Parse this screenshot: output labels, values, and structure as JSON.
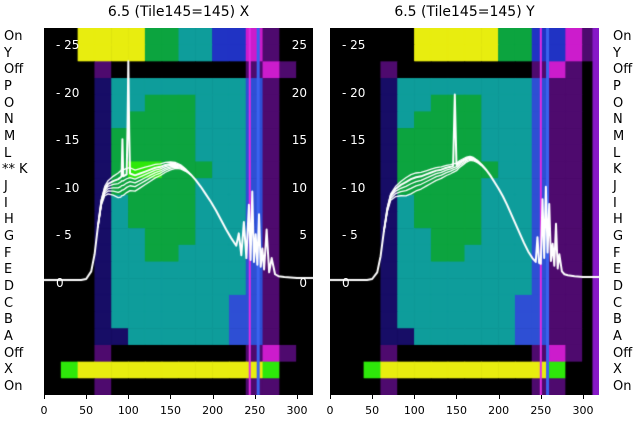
{
  "side_labels": {
    "left": [
      "On",
      "Y",
      "Off",
      "P",
      "O",
      "N",
      "M",
      "L",
      "K",
      "J",
      "I",
      "H",
      "G",
      "F",
      "E",
      "D",
      "C",
      "B",
      "A",
      "Off",
      "X",
      "On"
    ],
    "right": [
      "On",
      "Y",
      "Off",
      "P",
      "O",
      "N",
      "M",
      "L",
      "K",
      "J",
      "I",
      "H",
      "G",
      "F",
      "E",
      "D",
      "C",
      "B",
      "A",
      "Off",
      "X",
      "On"
    ],
    "marker_text": "**",
    "marker_row": 8
  },
  "palette": {
    "k": "#000000",
    "p": "#4e0a6e",
    "m": "#cc1ccc",
    "v": "#7a0fb4",
    "n": "#170d66",
    "d": "#2033c4",
    "b": "#2e4fd4",
    "c": "#0e9d9b",
    "g": "#0ca43f",
    "e": "#2ee80a",
    "y": "#e8ed0f"
  },
  "chart_data": [
    {
      "type": "heatmap",
      "title": "6.5 (Tile145=145) X",
      "xlim": [
        0,
        319
      ],
      "ylim": [
        -11.8,
        26.8
      ],
      "x_tick_values": [
        0,
        50,
        100,
        150,
        200,
        250,
        300
      ],
      "x_tick_labels": [
        "0",
        "50",
        "100",
        "150",
        "200",
        "250",
        "300"
      ],
      "y_ticks_left": [
        {
          "v": 25,
          "label": "- 25"
        },
        {
          "v": 20,
          "label": "- 20"
        },
        {
          "v": 15,
          "label": "- 15"
        },
        {
          "v": 10,
          "label": "- 10"
        },
        {
          "v": 5,
          "label": "- 5"
        },
        {
          "v": 0,
          "label": "0"
        }
      ],
      "y_ticks_right": [
        {
          "v": 25,
          "label": "25"
        },
        {
          "v": 20,
          "label": "20"
        },
        {
          "v": 15,
          "label": "15"
        },
        {
          "v": 10,
          "label": "10"
        },
        {
          "v": 5,
          "label": "5"
        },
        {
          "v": 0,
          "label": "0"
        }
      ],
      "rows": [
        "kkyyyyggccddmpkk",
        "kkyyyyggccddmpkk",
        "kkkpkkkkkkkkpmpk",
        "kkknccccccccbpkk",
        "kkknccgggcccbpkk",
        "kkkncggggcccbpkk",
        "kkkngggggcccbpkk",
        "kkkngggggcccbpkk",
        "kkkngeegggccbpkk",
        "kkkngggggcccbpkk",
        "kkkncggggcccbpkk",
        "kkkncggggcccbpkk",
        "kkknccgggcccbpkk",
        "kkknccggccccbpkk",
        "kkknccccccccbpkk",
        "kkknccccccccbpkk",
        "kkkncccccccbbpkk",
        "kkkncccccccbbpkk",
        "kkknnccccccbbpkk",
        "kkkpkkkkkkkkpmpk",
        "keyyyyyyyyyyyekk",
        "kkkpkkkkkkkkppkk"
      ],
      "vlines": [
        {
          "x": 244,
          "w": 2,
          "color": "#e22ce2"
        },
        {
          "x": 254,
          "w": 3,
          "color": "#3b63ee"
        }
      ],
      "line": {
        "color": "#ffffff",
        "points": [
          [
            0,
            0.3
          ],
          [
            44,
            0.3
          ],
          [
            50,
            0.4
          ],
          [
            56,
            1.2
          ],
          [
            60,
            3
          ],
          [
            64,
            6
          ],
          [
            68,
            8.6
          ],
          [
            72,
            9.9
          ],
          [
            76,
            10.4
          ],
          [
            82,
            10.7
          ],
          [
            88,
            10.9
          ],
          [
            91,
            11.1
          ],
          [
            92,
            11.2
          ],
          [
            93,
            15.1
          ],
          [
            94,
            11.2
          ],
          [
            96,
            11.3
          ],
          [
            98,
            11.4
          ],
          [
            99,
            16
          ],
          [
            100,
            23.3
          ],
          [
            101,
            16
          ],
          [
            102,
            11.5
          ],
          [
            108,
            11.3
          ],
          [
            114,
            11.5
          ],
          [
            120,
            11.7
          ],
          [
            126,
            11.9
          ],
          [
            132,
            12.1
          ],
          [
            138,
            12.2
          ],
          [
            144,
            12.4
          ],
          [
            150,
            12.5
          ],
          [
            156,
            12.5
          ],
          [
            162,
            12.3
          ],
          [
            168,
            11.9
          ],
          [
            174,
            11.4
          ],
          [
            180,
            10.8
          ],
          [
            186,
            10.1
          ],
          [
            192,
            9.3
          ],
          [
            198,
            8.5
          ],
          [
            204,
            7.6
          ],
          [
            210,
            6.6
          ],
          [
            216,
            5.6
          ],
          [
            222,
            4.7
          ],
          [
            228,
            3.9
          ],
          [
            231,
            5.2
          ],
          [
            234,
            2.9
          ],
          [
            237,
            6.4
          ],
          [
            240,
            2.6
          ],
          [
            243,
            8.2
          ],
          [
            245,
            2.4
          ],
          [
            247,
            9.6
          ],
          [
            249,
            2.2
          ],
          [
            251,
            5.1
          ],
          [
            253,
            1.9
          ],
          [
            255,
            7.2
          ],
          [
            257,
            1.7
          ],
          [
            259,
            3.6
          ],
          [
            261,
            1.4
          ],
          [
            264,
            5.6
          ],
          [
            267,
            1.1
          ],
          [
            270,
            2.6
          ],
          [
            274,
            0.9
          ],
          [
            278,
            0.7
          ],
          [
            285,
            0.6
          ],
          [
            300,
            0.5
          ],
          [
            319,
            0.5
          ]
        ]
      },
      "trace_offsets": [
        0.7,
        -0.5,
        -1.0,
        -1.5,
        -2.1
      ],
      "trace_range": [
        62,
        175
      ]
    },
    {
      "type": "heatmap",
      "title": "6.5 (Tile145=145) Y",
      "xlim": [
        0,
        319
      ],
      "ylim": [
        -11.8,
        26.8
      ],
      "x_tick_values": [
        0,
        50,
        100,
        150,
        200,
        250,
        300
      ],
      "x_tick_labels": [
        "0",
        "50",
        "100",
        "150",
        "200",
        "250",
        "300"
      ],
      "y_ticks_left": [
        {
          "v": 25,
          "label": "- 25"
        },
        {
          "v": 20,
          "label": "- 20"
        },
        {
          "v": 15,
          "label": "- 15"
        },
        {
          "v": 10,
          "label": "- 10"
        },
        {
          "v": 5,
          "label": "- 5"
        },
        {
          "v": 0,
          "label": "0"
        }
      ],
      "y_ticks_right": [],
      "rows": [
        "kkkkkyyyyyggddmp",
        "kkkkkyyyyyggddmp",
        "kkkpkkkkkkkkpmpk",
        "kkknccccccccbppk",
        "kkknccgggcccbppk",
        "kkkncggggcccbppk",
        "kkkngggggcccbppk",
        "kkkngggggcccbppk",
        "kkknggggggccbppk",
        "kkkngggggcccbppk",
        "kkkncggggcccbppk",
        "kkkncggggcccbppk",
        "kkknccgggcccbppk",
        "kkknccggccccbppk",
        "kkknccccccccbppk",
        "kkknccccccccbppk",
        "kkkncccccccbbppk",
        "kkkncccccccbbppk",
        "kkknnccccccbbppk",
        "kkkpkkkkkkkkpmpk",
        "kkeyyyyyyyyyyekk",
        "kkkpkkkkkkkkppkk"
      ],
      "vlines": [
        {
          "x": 250,
          "w": 2,
          "color": "#e22ce2"
        },
        {
          "x": 258,
          "w": 3,
          "color": "#3b63ee"
        },
        {
          "x": 316,
          "w": 8,
          "color": "#8718c8"
        }
      ],
      "line": {
        "color": "#ffffff",
        "points": [
          [
            0,
            0.3
          ],
          [
            44,
            0.3
          ],
          [
            50,
            0.4
          ],
          [
            56,
            1.1
          ],
          [
            60,
            2.8
          ],
          [
            64,
            5.5
          ],
          [
            68,
            7.8
          ],
          [
            72,
            9.2
          ],
          [
            78,
            9.9
          ],
          [
            84,
            10.3
          ],
          [
            90,
            10.6
          ],
          [
            96,
            10.9
          ],
          [
            102,
            11.1
          ],
          [
            108,
            11.2
          ],
          [
            114,
            11.4
          ],
          [
            120,
            11.6
          ],
          [
            126,
            11.8
          ],
          [
            132,
            11.9
          ],
          [
            138,
            12.1
          ],
          [
            143,
            12.2
          ],
          [
            146,
            12.3
          ],
          [
            147,
            16
          ],
          [
            148,
            19.8
          ],
          [
            149,
            16
          ],
          [
            150,
            12.4
          ],
          [
            154,
            12.7
          ],
          [
            158,
            12.9
          ],
          [
            162,
            13.1
          ],
          [
            166,
            13.2
          ],
          [
            170,
            13.1
          ],
          [
            175,
            12.8
          ],
          [
            180,
            12.4
          ],
          [
            185,
            11.9
          ],
          [
            190,
            11.3
          ],
          [
            195,
            10.6
          ],
          [
            200,
            9.9
          ],
          [
            205,
            9.1
          ],
          [
            210,
            8.2
          ],
          [
            215,
            7.2
          ],
          [
            220,
            6.2
          ],
          [
            225,
            5.2
          ],
          [
            230,
            4.2
          ],
          [
            235,
            3.3
          ],
          [
            240,
            2.6
          ],
          [
            244,
            2.2
          ],
          [
            246,
            4.8
          ],
          [
            248,
            2.1
          ],
          [
            250,
            2
          ],
          [
            252,
            8.8
          ],
          [
            254,
            2.6
          ],
          [
            256,
            10.1
          ],
          [
            258,
            3.2
          ],
          [
            260,
            8.3
          ],
          [
            262,
            2.3
          ],
          [
            264,
            4.1
          ],
          [
            266,
            1.8
          ],
          [
            268,
            6.2
          ],
          [
            270,
            1.5
          ],
          [
            272,
            3
          ],
          [
            275,
            1.2
          ],
          [
            278,
            0.9
          ],
          [
            282,
            0.8
          ],
          [
            290,
            0.7
          ],
          [
            300,
            0.6
          ],
          [
            319,
            0.6
          ]
        ]
      },
      "trace_offsets": [
        0.5,
        -0.5,
        -1.0,
        -1.6
      ],
      "trace_range": [
        62,
        185
      ]
    }
  ]
}
